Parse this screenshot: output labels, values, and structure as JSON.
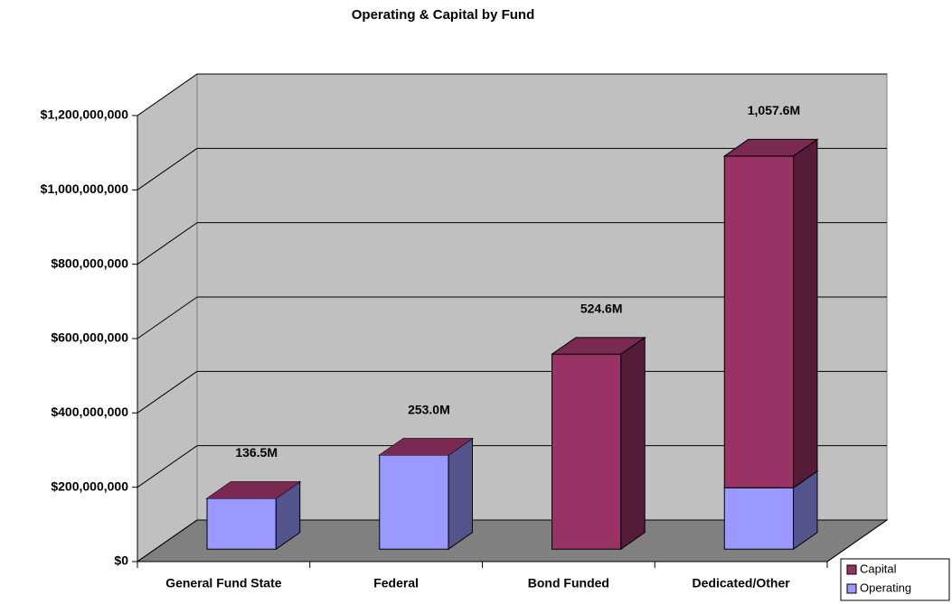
{
  "chart_data": {
    "type": "bar3d_stacked",
    "title": "Operating & Capital by Fund",
    "categories": [
      "General Fund State",
      "Federal",
      "Bond Funded",
      "Dedicated/Other"
    ],
    "series": [
      {
        "name": "Operating",
        "color": "#9999ff",
        "values": [
          136500000,
          253000000,
          0,
          165000000
        ]
      },
      {
        "name": "Capital",
        "color": "#993366",
        "values": [
          0,
          0,
          524600000,
          892600000
        ]
      }
    ],
    "totals": [
      136500000,
      253000000,
      524600000,
      1057600000
    ],
    "total_labels": [
      "136.5M",
      "253.0M",
      "524.6M",
      "1,057.6M"
    ],
    "ylim": [
      0,
      1200000000
    ],
    "yticks": [
      {
        "value": 0,
        "label": "$0"
      },
      {
        "value": 200000000,
        "label": "$200,000,000"
      },
      {
        "value": 400000000,
        "label": "$400,000,000"
      },
      {
        "value": 600000000,
        "label": "$600,000,000"
      },
      {
        "value": 800000000,
        "label": "$800,000,000"
      },
      {
        "value": 1000000000,
        "label": "$1,000,000,000"
      },
      {
        "value": 1200000000,
        "label": "$1,200,000,000"
      }
    ],
    "grid": true,
    "legend": "bottom-right"
  }
}
